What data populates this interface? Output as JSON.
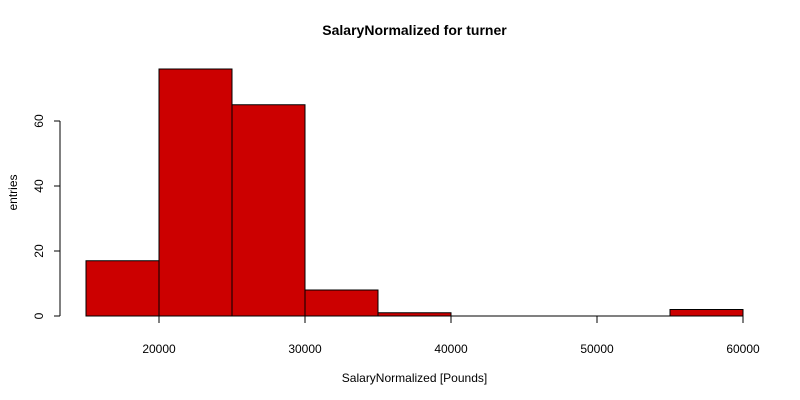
{
  "chart_data": {
    "type": "bar",
    "title": "SalaryNormalized for turner",
    "xlabel": "SalaryNormalized [Pounds]",
    "ylabel": "entries",
    "bins": [
      {
        "x0": 15000,
        "x1": 20000,
        "count": 17
      },
      {
        "x0": 20000,
        "x1": 25000,
        "count": 76
      },
      {
        "x0": 25000,
        "x1": 30000,
        "count": 65
      },
      {
        "x0": 30000,
        "x1": 35000,
        "count": 8
      },
      {
        "x0": 35000,
        "x1": 40000,
        "count": 1
      },
      {
        "x0": 40000,
        "x1": 45000,
        "count": 0
      },
      {
        "x0": 45000,
        "x1": 50000,
        "count": 0
      },
      {
        "x0": 50000,
        "x1": 55000,
        "count": 0
      },
      {
        "x0": 55000,
        "x1": 60000,
        "count": 2
      }
    ],
    "xlim": [
      15000,
      60000
    ],
    "ylim": [
      0,
      76
    ],
    "x_ticks": [
      20000,
      30000,
      40000,
      50000,
      60000
    ],
    "y_ticks": [
      0,
      20,
      40,
      60
    ],
    "bar_color": "#cc0000",
    "grid": false
  }
}
